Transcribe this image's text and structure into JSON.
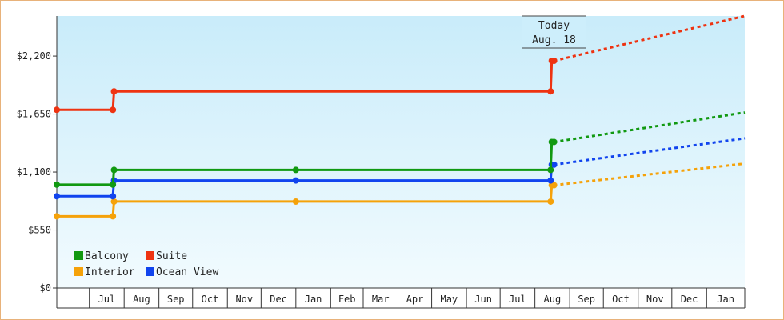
{
  "chart_data": {
    "type": "line",
    "style": "step",
    "xlabel": "",
    "ylabel": "",
    "y_ticks": [
      {
        "value": 0,
        "label": "$0"
      },
      {
        "value": 550,
        "label": "$550"
      },
      {
        "value": 1100,
        "label": "$1,100"
      },
      {
        "value": 1650,
        "label": "$1,650"
      },
      {
        "value": 2200,
        "label": "$2,200"
      }
    ],
    "ylim": [
      0,
      2580
    ],
    "x_range": [
      "2023-06-02",
      "2025-02-04"
    ],
    "x_ticks": [
      {
        "date": "2023-07-01",
        "label": "Jul"
      },
      {
        "date": "2023-08-01",
        "label": "Aug"
      },
      {
        "date": "2023-09-01",
        "label": "Sep"
      },
      {
        "date": "2023-10-01",
        "label": "Oct"
      },
      {
        "date": "2023-11-01",
        "label": "Nov"
      },
      {
        "date": "2023-12-01",
        "label": "Dec"
      },
      {
        "date": "2024-01-01",
        "label": "Jan"
      },
      {
        "date": "2024-02-01",
        "label": "Feb"
      },
      {
        "date": "2024-03-01",
        "label": "Mar"
      },
      {
        "date": "2024-04-01",
        "label": "Apr"
      },
      {
        "date": "2024-05-01",
        "label": "May"
      },
      {
        "date": "2024-06-01",
        "label": "Jun"
      },
      {
        "date": "2024-07-01",
        "label": "Jul"
      },
      {
        "date": "2024-08-01",
        "label": "Aug"
      },
      {
        "date": "2024-09-01",
        "label": "Sep"
      },
      {
        "date": "2024-10-01",
        "label": "Oct"
      },
      {
        "date": "2024-11-01",
        "label": "Nov"
      },
      {
        "date": "2024-12-01",
        "label": "Dec"
      },
      {
        "date": "2025-01-01",
        "label": "Jan"
      }
    ],
    "today": {
      "date": "2024-08-18",
      "label_line1": "Today",
      "label_line2": "Aug. 18"
    },
    "series": [
      {
        "name": "Balcony",
        "color": "#119911",
        "points": [
          {
            "date": "2023-06-02",
            "value": 980
          },
          {
            "date": "2023-07-22",
            "value": 980
          },
          {
            "date": "2023-07-23",
            "value": 1120
          },
          {
            "date": "2024-01-01",
            "value": 1120
          },
          {
            "date": "2024-08-15",
            "value": 1120
          },
          {
            "date": "2024-08-16",
            "value": 1385
          },
          {
            "date": "2024-08-18",
            "value": 1385
          }
        ],
        "forecast": [
          {
            "date": "2024-08-18",
            "value": 1385
          },
          {
            "date": "2025-02-04",
            "value": 1665
          }
        ]
      },
      {
        "name": "Suite",
        "color": "#ee3311",
        "points": [
          {
            "date": "2023-06-02",
            "value": 1690
          },
          {
            "date": "2023-07-22",
            "value": 1690
          },
          {
            "date": "2023-07-23",
            "value": 1865
          },
          {
            "date": "2024-08-15",
            "value": 1865
          },
          {
            "date": "2024-08-16",
            "value": 2155
          },
          {
            "date": "2024-08-18",
            "value": 2155
          }
        ],
        "forecast": [
          {
            "date": "2024-08-18",
            "value": 2155
          },
          {
            "date": "2025-02-04",
            "value": 2580
          }
        ]
      },
      {
        "name": "Interior",
        "color": "#f5a20a",
        "points": [
          {
            "date": "2023-06-02",
            "value": 680
          },
          {
            "date": "2023-07-22",
            "value": 680
          },
          {
            "date": "2023-07-23",
            "value": 820
          },
          {
            "date": "2024-01-01",
            "value": 820
          },
          {
            "date": "2024-08-15",
            "value": 820
          },
          {
            "date": "2024-08-16",
            "value": 975
          },
          {
            "date": "2024-08-18",
            "value": 975
          }
        ],
        "forecast": [
          {
            "date": "2024-08-18",
            "value": 975
          },
          {
            "date": "2025-02-04",
            "value": 1180
          }
        ]
      },
      {
        "name": "Ocean View",
        "color": "#1144ee",
        "points": [
          {
            "date": "2023-06-02",
            "value": 870
          },
          {
            "date": "2023-07-22",
            "value": 870
          },
          {
            "date": "2023-07-23",
            "value": 1020
          },
          {
            "date": "2024-01-01",
            "value": 1020
          },
          {
            "date": "2024-08-15",
            "value": 1020
          },
          {
            "date": "2024-08-16",
            "value": 1170
          },
          {
            "date": "2024-08-18",
            "value": 1170
          }
        ],
        "forecast": [
          {
            "date": "2024-08-18",
            "value": 1170
          },
          {
            "date": "2025-02-04",
            "value": 1420
          }
        ]
      }
    ],
    "markers": {
      "Balcony": [
        "2023-06-02",
        "2023-07-22",
        "2023-07-23",
        "2024-01-01",
        "2024-08-15",
        "2024-08-16",
        "2024-08-18"
      ],
      "Suite": [
        "2023-06-02",
        "2023-07-22",
        "2023-07-23",
        "2024-08-15",
        "2024-08-16",
        "2024-08-18"
      ],
      "Interior": [
        "2023-06-02",
        "2023-07-22",
        "2023-07-23",
        "2024-01-01",
        "2024-08-15",
        "2024-08-16",
        "2024-08-18"
      ],
      "Ocean View": [
        "2023-06-02",
        "2023-07-22",
        "2023-07-23",
        "2024-01-01",
        "2024-08-15",
        "2024-08-16",
        "2024-08-18"
      ]
    },
    "legend": {
      "placement": "bottom-left",
      "items": [
        {
          "name": "Balcony",
          "color": "#119911"
        },
        {
          "name": "Suite",
          "color": "#ee3311"
        },
        {
          "name": "Interior",
          "color": "#f5a20a"
        },
        {
          "name": "Ocean View",
          "color": "#1144ee"
        }
      ]
    },
    "grid": false,
    "background_gradient": [
      "#c9ecfa",
      "#f2fbfe"
    ]
  }
}
